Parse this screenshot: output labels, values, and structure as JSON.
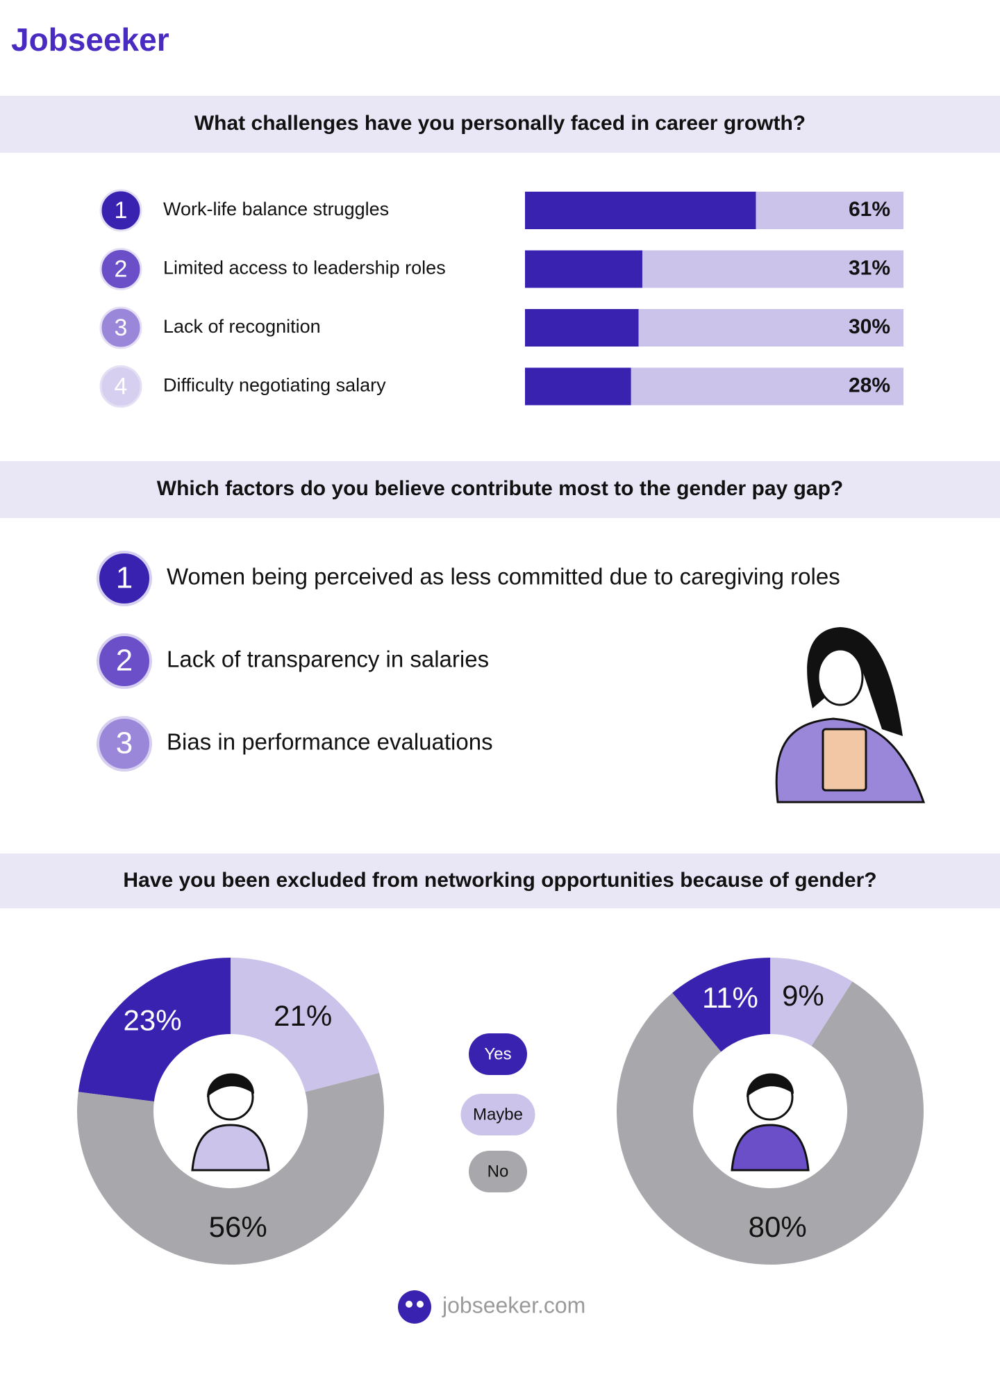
{
  "header": {
    "logo": "Jobseeker"
  },
  "chart_data": [
    {
      "type": "bar",
      "title": "What challenges have you personally faced in career growth?",
      "ranks": [
        "1",
        "2",
        "3",
        "4"
      ],
      "categories": [
        "Work-life balance struggles",
        "Limited access to leadership roles",
        "Lack of recognition",
        "Difficulty negotiating salary"
      ],
      "values": [
        61,
        31,
        30,
        28
      ],
      "value_labels": [
        "61%",
        "31%",
        "30%",
        "28%"
      ],
      "xlim": [
        0,
        100
      ],
      "color": "#3a22b0",
      "track_color": "#cbc3ea",
      "rank_colors": [
        "#3a22b0",
        "#6a4fc8",
        "#9a87d9",
        "#d6cff0"
      ]
    },
    {
      "type": "pie",
      "title": "Have you been excluded from networking opportunities because of gender?",
      "categories": [
        "Yes",
        "Maybe",
        "No"
      ],
      "values": [
        23,
        21,
        56
      ],
      "value_labels": [
        "23%",
        "21%",
        "56%"
      ],
      "colors": [
        "#3a22b0",
        "#cbc3ea",
        "#a8a7ab"
      ]
    },
    {
      "type": "pie",
      "categories": [
        "Yes",
        "Maybe",
        "No"
      ],
      "values": [
        11,
        9,
        80
      ],
      "value_labels": [
        "11%",
        "9%",
        "80%"
      ],
      "colors": [
        "#3a22b0",
        "#cbc3ea",
        "#a8a7ab"
      ]
    }
  ],
  "factors": {
    "title": "Which factors do you believe contribute most to the gender pay gap?",
    "items": [
      {
        "rank": "1",
        "text": "Women being perceived as less committed due to caregiving roles"
      },
      {
        "rank": "2",
        "text": "Lack of transparency in salaries"
      },
      {
        "rank": "3",
        "text": "Bias in performance evaluations"
      }
    ]
  },
  "footer": {
    "site": "jobseeker.com"
  }
}
